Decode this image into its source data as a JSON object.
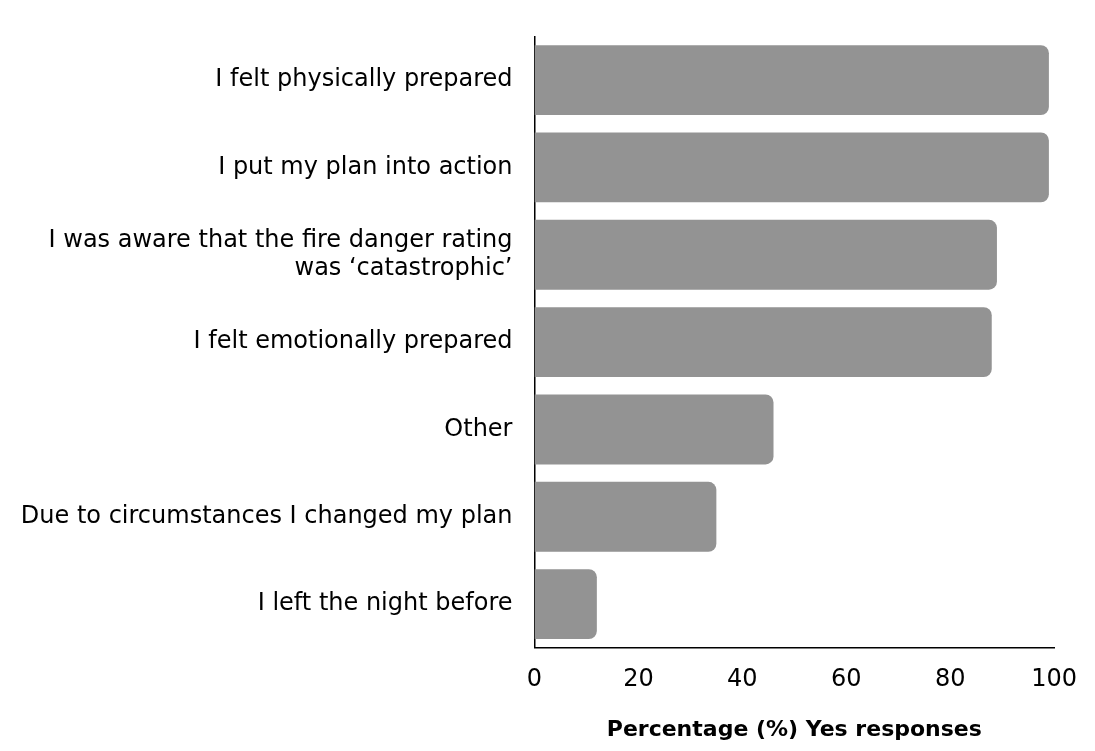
{
  "chart_data": {
    "type": "bar",
    "orientation": "horizontal",
    "xlabel": "Percentage (%) Yes responses",
    "categories": [
      "I felt physically prepared",
      "I put my plan into action",
      "I was aware that the fire danger rating was ‘catastrophic’",
      "I felt emotionally prepared",
      "Other",
      "Due to circumstances I changed my plan",
      "I left the night before"
    ],
    "values": [
      99,
      99,
      89,
      88,
      46,
      35,
      12
    ],
    "color": "#939393",
    "xlim": [
      0,
      100
    ],
    "xticks": [
      0,
      20,
      40,
      60,
      80,
      100
    ],
    "grid": false,
    "legend": false
  }
}
